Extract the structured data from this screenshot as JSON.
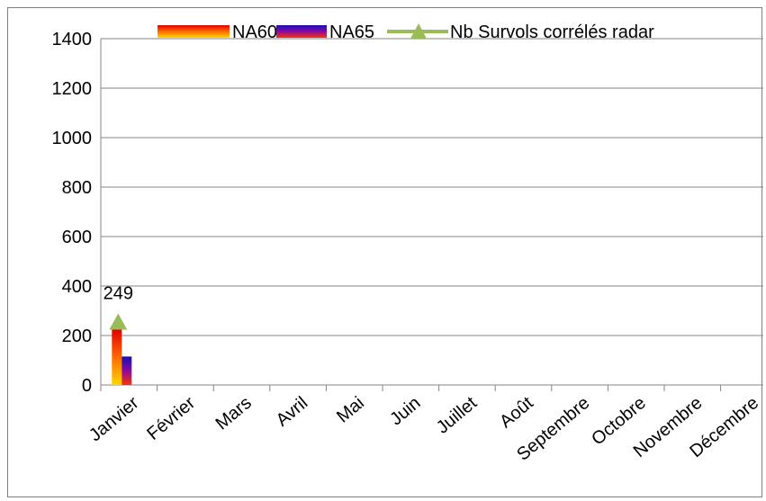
{
  "chart_data": {
    "type": "bar",
    "categories": [
      "Janvier",
      "Février",
      "Mars",
      "Avril",
      "Mai",
      "Juin",
      "Juillet",
      "Août",
      "Septembre",
      "Octobre",
      "Novembre",
      "Décembre"
    ],
    "series": [
      {
        "name": "NA60",
        "kind": "bar",
        "values": [
          225,
          null,
          null,
          null,
          null,
          null,
          null,
          null,
          null,
          null,
          null,
          null
        ],
        "colors": [
          "#ffd700",
          "#ff6a00",
          "#e00000"
        ]
      },
      {
        "name": "NA65",
        "kind": "bar",
        "values": [
          115,
          null,
          null,
          null,
          null,
          null,
          null,
          null,
          null,
          null,
          null,
          null
        ],
        "colors": [
          "#ff3300",
          "#8a0aa0",
          "#1a0db5"
        ]
      },
      {
        "name": "Nb Survols corrélés radar",
        "kind": "line-marker",
        "marker": "triangle",
        "values": [
          249,
          null,
          null,
          null,
          null,
          null,
          null,
          null,
          null,
          null,
          null,
          null
        ],
        "color": "#9bbb59"
      }
    ],
    "data_labels": [
      {
        "series": "Nb Survols corrélés radar",
        "category": "Janvier",
        "text": "249"
      }
    ],
    "ylim": [
      0,
      1400
    ],
    "yticks": [
      "0",
      "200",
      "400",
      "600",
      "800",
      "1000",
      "1200",
      "1400"
    ],
    "grid": true,
    "legend_position": "top"
  }
}
